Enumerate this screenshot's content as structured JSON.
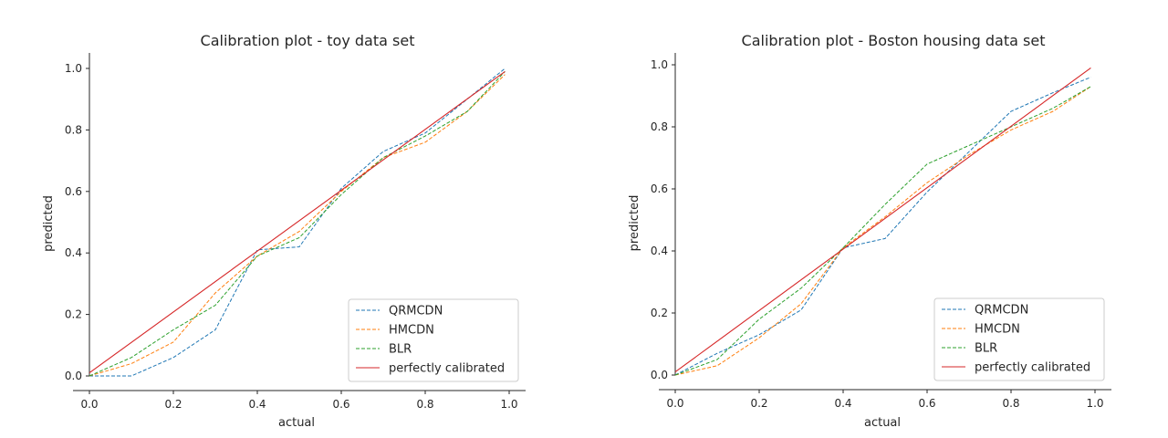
{
  "colors": {
    "QRMCDN": "#1f77b4",
    "HMCDN": "#ff7f0e",
    "BLR": "#2ca02c",
    "perfectly calibrated": "#d62728"
  },
  "chart_data": [
    {
      "type": "line",
      "title": "Calibration plot - toy data set",
      "xlabel": "actual",
      "ylabel": "predicted",
      "xlim": [
        -0.04,
        1.04
      ],
      "ylim": [
        -0.045,
        1.045
      ],
      "xticks": [
        "0.0",
        "0.2",
        "0.4",
        "0.6",
        "0.8",
        "1.0"
      ],
      "yticks": [
        "0.0",
        "0.2",
        "0.4",
        "0.6",
        "0.8",
        "1.0"
      ],
      "legend_position": "lower-right",
      "grid": false,
      "series": [
        {
          "name": "QRMCDN",
          "style": "dashed",
          "x": [
            0.0,
            0.1,
            0.2,
            0.3,
            0.4,
            0.5,
            0.6,
            0.7,
            0.8,
            0.9,
            0.99
          ],
          "y": [
            0.0,
            0.0,
            0.06,
            0.15,
            0.41,
            0.42,
            0.61,
            0.73,
            0.79,
            0.9,
            1.0
          ]
        },
        {
          "name": "HMCDN",
          "style": "dashed",
          "x": [
            0.0,
            0.1,
            0.2,
            0.3,
            0.4,
            0.5,
            0.6,
            0.7,
            0.8,
            0.9,
            0.99
          ],
          "y": [
            0.0,
            0.04,
            0.11,
            0.27,
            0.39,
            0.47,
            0.6,
            0.71,
            0.76,
            0.86,
            0.98
          ]
        },
        {
          "name": "BLR",
          "style": "dashed",
          "x": [
            0.0,
            0.1,
            0.2,
            0.3,
            0.4,
            0.5,
            0.6,
            0.7,
            0.8,
            0.9,
            0.99
          ],
          "y": [
            0.0,
            0.06,
            0.15,
            0.23,
            0.39,
            0.45,
            0.59,
            0.71,
            0.78,
            0.86,
            0.99
          ]
        },
        {
          "name": "perfectly calibrated",
          "style": "solid",
          "x": [
            0.0,
            0.99
          ],
          "y": [
            0.01,
            0.99
          ]
        }
      ]
    },
    {
      "type": "line",
      "title": "Calibration plot - Boston housing data set",
      "xlabel": "actual",
      "ylabel": "predicted",
      "xlim": [
        -0.04,
        1.04
      ],
      "ylim": [
        -0.05,
        1.04
      ],
      "xticks": [
        "0.0",
        "0.2",
        "0.4",
        "0.6",
        "0.8",
        "1.0"
      ],
      "yticks": [
        "0.0",
        "0.2",
        "0.4",
        "0.6",
        "0.8",
        "1.0"
      ],
      "legend_position": "lower-right",
      "grid": false,
      "series": [
        {
          "name": "QRMCDN",
          "style": "dashed",
          "x": [
            0.0,
            0.1,
            0.2,
            0.3,
            0.4,
            0.5,
            0.6,
            0.7,
            0.8,
            0.9,
            0.99
          ],
          "y": [
            0.0,
            0.07,
            0.13,
            0.21,
            0.41,
            0.44,
            0.59,
            0.72,
            0.85,
            0.91,
            0.96
          ]
        },
        {
          "name": "HMCDN",
          "style": "dashed",
          "x": [
            0.0,
            0.1,
            0.2,
            0.3,
            0.4,
            0.5,
            0.6,
            0.7,
            0.8,
            0.9,
            0.99
          ],
          "y": [
            0.0,
            0.03,
            0.12,
            0.23,
            0.41,
            0.51,
            0.62,
            0.71,
            0.79,
            0.85,
            0.93
          ]
        },
        {
          "name": "BLR",
          "style": "dashed",
          "x": [
            0.0,
            0.1,
            0.2,
            0.3,
            0.4,
            0.5,
            0.6,
            0.7,
            0.8,
            0.9,
            0.99
          ],
          "y": [
            0.0,
            0.05,
            0.18,
            0.28,
            0.41,
            0.55,
            0.68,
            0.74,
            0.8,
            0.86,
            0.93
          ]
        },
        {
          "name": "perfectly calibrated",
          "style": "solid",
          "x": [
            0.0,
            0.99
          ],
          "y": [
            0.01,
            0.99
          ]
        }
      ]
    }
  ]
}
